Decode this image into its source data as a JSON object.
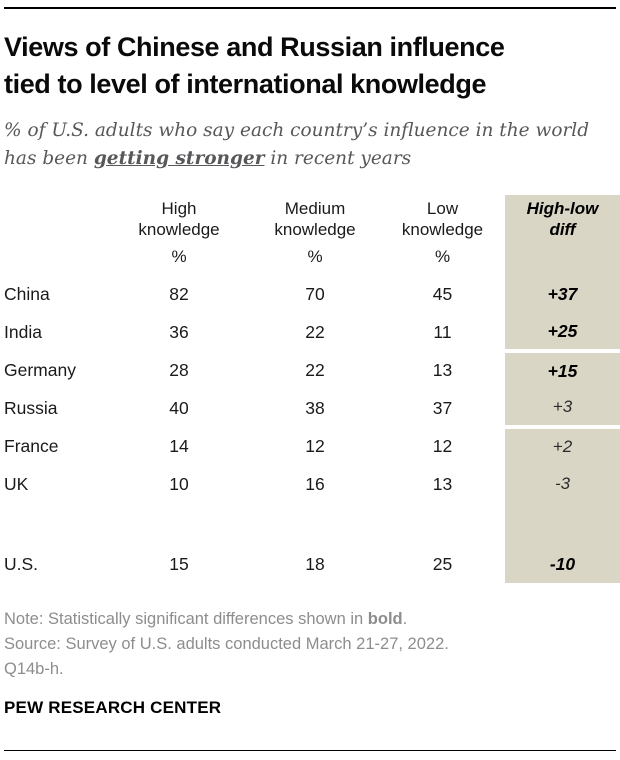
{
  "colors": {
    "tan": "#d9d6c6",
    "ink": "#1a1a1a",
    "subtitle_gray": "#58585b",
    "note_gray": "#8d8d8d"
  },
  "header": {
    "title_line1": "Views of Chinese and Russian influence",
    "title_line2": "tied to level of international knowledge"
  },
  "subtitle": {
    "prefix": "% of U.S. adults who say each country’s influence in the world has been ",
    "emphasis": "getting stronger",
    "suffix": " in recent years"
  },
  "chart_data": {
    "type": "table",
    "title": "Views of Chinese and Russian influence tied to level of international knowledge",
    "subtitle": "% of U.S. adults who say each country's influence in the world has been getting stronger in recent years",
    "categories": [
      "China",
      "India",
      "Germany",
      "Russia",
      "France",
      "UK",
      "U.S."
    ],
    "series": [
      {
        "name": "High knowledge",
        "values": [
          82,
          36,
          28,
          40,
          14,
          10,
          15
        ]
      },
      {
        "name": "Medium knowledge",
        "values": [
          70,
          22,
          22,
          38,
          12,
          16,
          18
        ]
      },
      {
        "name": "Low knowledge",
        "values": [
          45,
          11,
          13,
          37,
          12,
          13,
          25
        ]
      },
      {
        "name": "High-low diff",
        "values": [
          "+37",
          "+25",
          "+15",
          "+3",
          "+2",
          "-3",
          "-10"
        ]
      }
    ],
    "significant_diffs": [
      "China",
      "India",
      "Germany",
      "U.S."
    ]
  },
  "table": {
    "headers": [
      {
        "id": "high",
        "line1": "High",
        "line2": "knowledge",
        "diff": false
      },
      {
        "id": "medium",
        "line1": "Medium",
        "line2": "knowledge",
        "diff": false
      },
      {
        "id": "low",
        "line1": "Low",
        "line2": "knowledge",
        "diff": false
      },
      {
        "id": "diff",
        "line1": "High-low",
        "line2": "diff",
        "diff": true
      }
    ],
    "units": [
      "%",
      "%",
      "%"
    ],
    "rows": [
      {
        "label": "China",
        "values": [
          "82",
          "70",
          "45"
        ],
        "diff": "+37",
        "diff_bold": true,
        "separator_above": false,
        "spacer": false
      },
      {
        "label": "India",
        "values": [
          "36",
          "22",
          "11"
        ],
        "diff": "+25",
        "diff_bold": true,
        "separator_above": false,
        "spacer": false
      },
      {
        "label": "Germany",
        "values": [
          "28",
          "22",
          "13"
        ],
        "diff": "+15",
        "diff_bold": true,
        "separator_above": true,
        "spacer": false
      },
      {
        "label": "Russia",
        "values": [
          "40",
          "38",
          "37"
        ],
        "diff": "+3",
        "diff_bold": false,
        "separator_above": false,
        "spacer": false
      },
      {
        "label": "France",
        "values": [
          "14",
          "12",
          "12"
        ],
        "diff": "+2",
        "diff_bold": false,
        "separator_above": true,
        "spacer": false
      },
      {
        "label": "UK",
        "values": [
          "10",
          "16",
          "13"
        ],
        "diff": "-3",
        "diff_bold": false,
        "separator_above": false,
        "spacer": false
      },
      {
        "label": "",
        "values": [
          "",
          "",
          ""
        ],
        "diff": "",
        "diff_bold": false,
        "separator_above": false,
        "spacer": true
      },
      {
        "label": "U.S.",
        "values": [
          "15",
          "18",
          "25"
        ],
        "diff": "-10",
        "diff_bold": true,
        "separator_above": false,
        "spacer": false
      }
    ]
  },
  "footer": {
    "note_prefix": "Note: Statistically significant differences shown in ",
    "note_bold": "bold",
    "note_suffix": ".",
    "source": "Source: Survey of U.S. adults conducted March 21-27, 2022.",
    "question": "Q14b-h.",
    "brand": "PEW RESEARCH CENTER"
  }
}
